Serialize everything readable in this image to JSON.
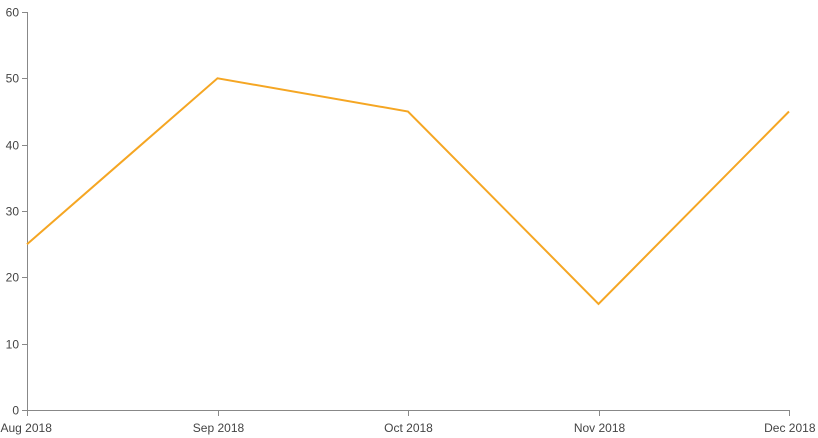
{
  "chart_data": {
    "type": "line",
    "categories": [
      "Aug 2018",
      "Sep 2018",
      "Oct 2018",
      "Nov 2018",
      "Dec 2018"
    ],
    "series": [
      {
        "values": [
          25,
          50,
          45,
          16,
          45
        ],
        "color": "#F5A623"
      }
    ],
    "ylim": [
      0,
      60
    ],
    "yticks": [
      0,
      10,
      20,
      30,
      40,
      50,
      60
    ],
    "grid": false,
    "legend": "none"
  }
}
